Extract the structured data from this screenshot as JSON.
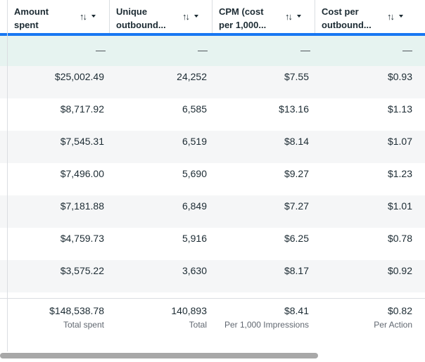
{
  "columns": [
    {
      "title_line1": "Amount",
      "title_line2": "spent",
      "sort_icon": "sort-arrows-icon"
    },
    {
      "title_line1": "Unique",
      "title_line2": "outbound...",
      "sort_icon": "sort-arrows-icon"
    },
    {
      "title_line1": "CPM (cost",
      "title_line2": "per 1,000...",
      "sort_icon": "sort-arrows-icon"
    },
    {
      "title_line1": "Cost per",
      "title_line2": "outbound...",
      "sort_icon": "sort-arrows-icon"
    }
  ],
  "sort_glyph": "↑↓",
  "summary_row": [
    "—",
    "—",
    "—",
    "—"
  ],
  "rows": [
    [
      "$25,002.49",
      "24,252",
      "$7.55",
      "$0.93"
    ],
    [
      "$8,717.92",
      "6,585",
      "$13.16",
      "$1.13"
    ],
    [
      "$7,545.31",
      "6,519",
      "$8.14",
      "$1.07"
    ],
    [
      "$7,496.00",
      "5,690",
      "$9.27",
      "$1.23"
    ],
    [
      "$7,181.88",
      "6,849",
      "$7.27",
      "$1.01"
    ],
    [
      "$4,759.73",
      "5,916",
      "$6.25",
      "$0.78"
    ],
    [
      "$3,575.22",
      "3,630",
      "$8.17",
      "$0.92"
    ]
  ],
  "totals": [
    {
      "value": "$148,538.78",
      "label": "Total spent"
    },
    {
      "value": "140,893",
      "label": "Total"
    },
    {
      "value": "$8.41",
      "label": "Per 1,000 Impressions"
    },
    {
      "value": "$0.82",
      "label": "Per Action"
    }
  ],
  "colors": {
    "accent": "#1877f2",
    "summary_bg": "#e6f3f0",
    "alt_row_bg": "#f5f6f7"
  }
}
